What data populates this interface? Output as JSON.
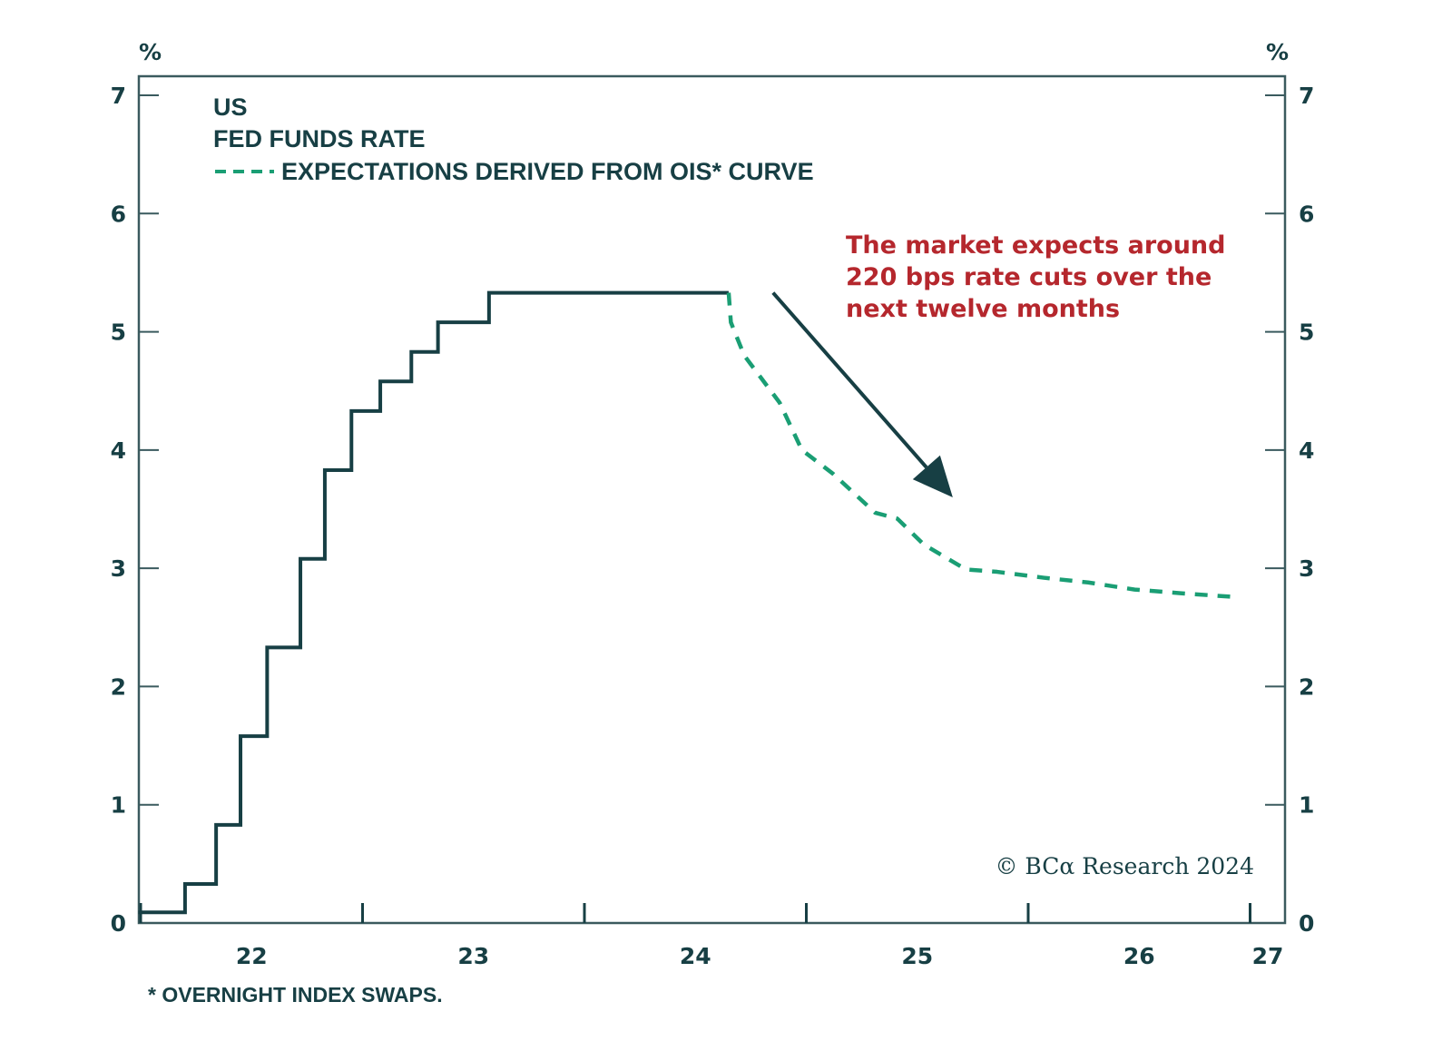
{
  "chart_data": {
    "type": "line",
    "title": "US",
    "subtitle": "FED FUNDS RATE",
    "ylabel_left": "%",
    "ylabel_right": "%",
    "ylim": [
      0,
      7
    ],
    "yticks": [
      0,
      1,
      2,
      3,
      4,
      5,
      6,
      7
    ],
    "xlim": [
      2022.0,
      2027.0
    ],
    "xtick_positions": [
      2022.0,
      2023.0,
      2024.0,
      2025.0,
      2026.0,
      2027.0
    ],
    "xtick_labels": [
      {
        "label": "22",
        "x": 2022.5
      },
      {
        "label": "23",
        "x": 2023.5
      },
      {
        "label": "24",
        "x": 2024.5
      },
      {
        "label": "25",
        "x": 2025.5
      },
      {
        "label": "26",
        "x": 2026.5
      },
      {
        "label": "27",
        "x": 2027.08
      }
    ],
    "grid": false,
    "legend": {
      "placement": "top-left",
      "entries": [
        {
          "label": "EXPECTATIONS DERIVED FROM OIS* CURVE",
          "style": "dashed",
          "color": "#1a9e74"
        }
      ]
    },
    "series": [
      {
        "name": "Fed Funds Rate",
        "style": "step",
        "color": "#173f44",
        "x": [
          2021.99,
          2022.2,
          2022.34,
          2022.45,
          2022.57,
          2022.72,
          2022.83,
          2022.95,
          2023.08,
          2023.22,
          2023.34,
          2023.57,
          2024.65
        ],
        "y": [
          0.09,
          0.33,
          0.83,
          1.58,
          2.33,
          3.08,
          3.83,
          4.33,
          4.58,
          4.83,
          5.08,
          5.33,
          5.33
        ]
      },
      {
        "name": "Expectations derived from OIS* curve",
        "style": "dashed",
        "color": "#1a9e74",
        "x": [
          2024.65,
          2024.66,
          2024.72,
          2024.88,
          2024.98,
          2025.12,
          2025.31,
          2025.41,
          2025.53,
          2025.72,
          2025.86,
          2026.07,
          2026.27,
          2026.48,
          2026.68,
          2026.91
        ],
        "y": [
          5.33,
          5.08,
          4.8,
          4.4,
          4.0,
          3.8,
          3.47,
          3.42,
          3.2,
          2.99,
          2.97,
          2.92,
          2.88,
          2.82,
          2.79,
          2.76
        ]
      }
    ],
    "annotations": [
      {
        "lines": [
          "The market expects around",
          "220 bps rate cuts over the",
          "next twelve months"
        ],
        "color": "#b5272d",
        "arrow": {
          "from": [
            2024.85,
            5.33
          ],
          "to": [
            2025.66,
            3.6
          ],
          "color": "#173f44"
        }
      }
    ],
    "footnote": "* OVERNIGHT INDEX SWAPS.",
    "source": "© BCα Research 2024"
  }
}
